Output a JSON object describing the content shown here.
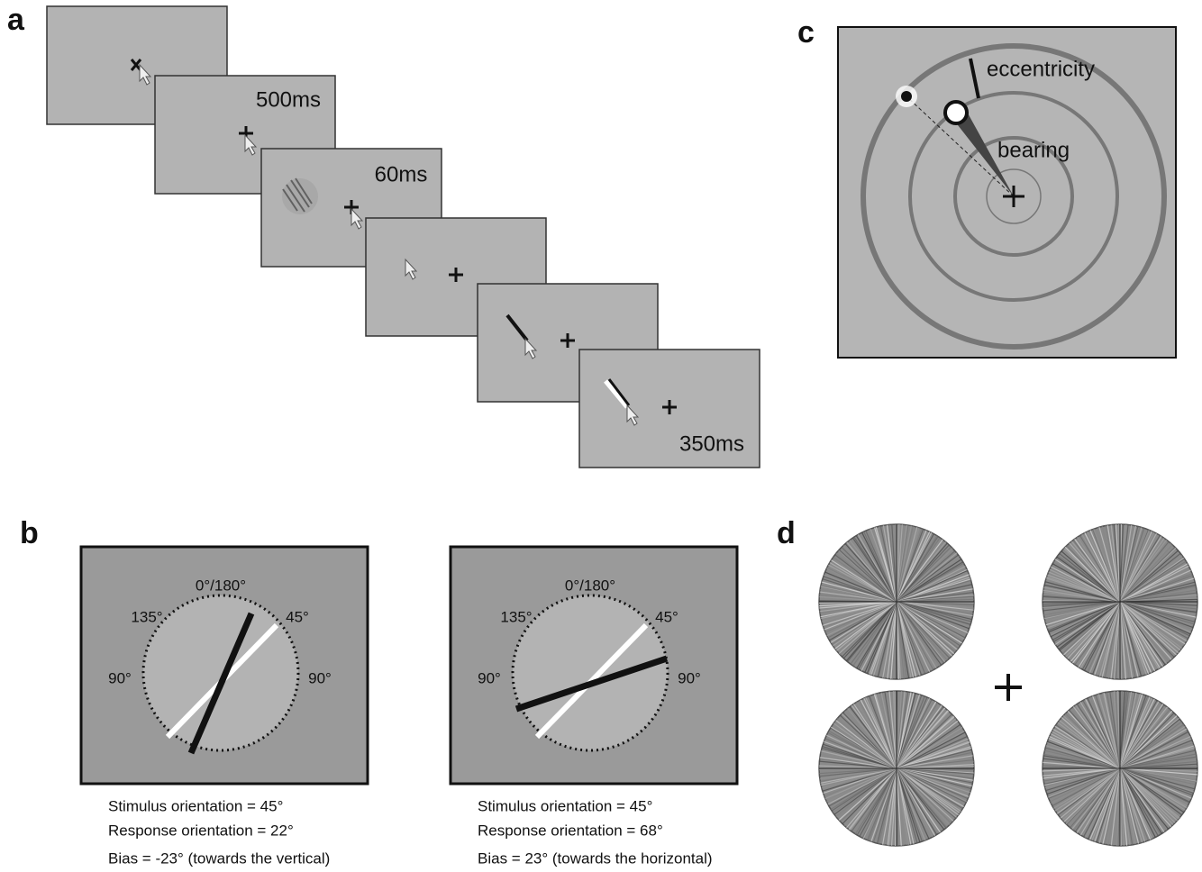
{
  "panels": {
    "a": {
      "label": "a",
      "timings": [
        "500ms",
        "60ms",
        "350ms"
      ]
    },
    "b": {
      "label": "b",
      "examples": [
        {
          "scale": {
            "top": "0°/180°",
            "upper_left": "135°",
            "upper_right": "45°",
            "left": "90°",
            "right": "90°"
          },
          "caption": [
            "Stimulus orientation = 45°",
            "Response orientation = 22°",
            "Bias = -23° (towards the vertical)"
          ]
        },
        {
          "scale": {
            "top": "0°/180°",
            "upper_left": "135°",
            "upper_right": "45°",
            "left": "90°",
            "right": "90°"
          },
          "caption": [
            "Stimulus orientation = 45°",
            "Response orientation = 68°",
            "Bias = 23° (towards the horizontal)"
          ]
        }
      ]
    },
    "c": {
      "label": "c",
      "eccentricity": "eccentricity",
      "bearing": "bearing"
    },
    "d": {
      "label": "d"
    }
  }
}
